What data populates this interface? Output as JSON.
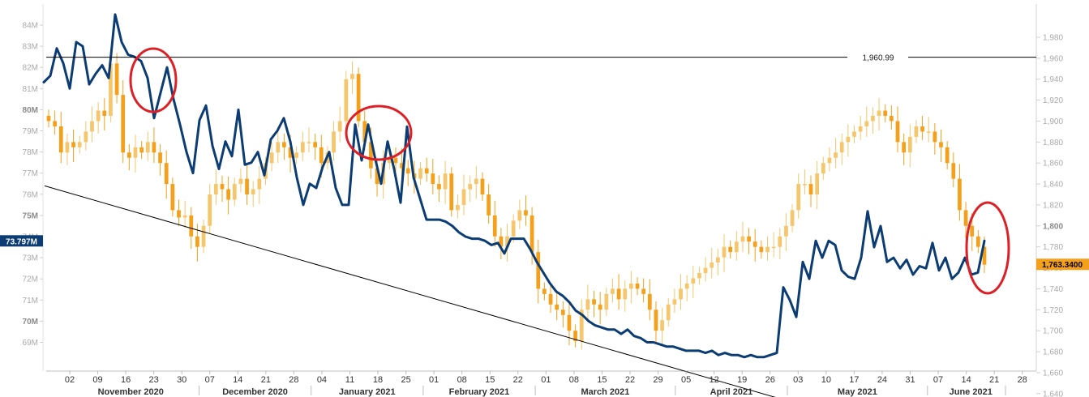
{
  "chart_data": {
    "type": "line",
    "left_axis": {
      "ticks": [
        "69M",
        "70M",
        "71M",
        "72M",
        "73M",
        "74M",
        "75M",
        "76M",
        "77M",
        "78M",
        "79M",
        "80M",
        "81M",
        "82M",
        "83M",
        "84M"
      ],
      "bold_ticks": [
        "70M",
        "75M",
        "80M"
      ],
      "range": [
        68.1,
        84.5
      ],
      "current_value_label": "73.797M",
      "current_value": 73.797
    },
    "right_axis": {
      "ticks": [
        "1,640",
        "1,660",
        "1,680",
        "1,700",
        "1,720",
        "1,740",
        "1,760",
        "1,780",
        "1,800",
        "1,820",
        "1,840",
        "1,860",
        "1,880",
        "1,900",
        "1,920",
        "1,940",
        "1,960",
        "1,980"
      ],
      "bold_ticks": [
        "1,800"
      ],
      "range": [
        1615,
        1995
      ],
      "current_value_label": "1,763.3400",
      "current_value": 1763.34
    },
    "x_ticks": [
      "02",
      "09",
      "16",
      "23",
      "30",
      "07",
      "14",
      "21",
      "28",
      "04",
      "11",
      "18",
      "25",
      "01",
      "08",
      "15",
      "22",
      "01",
      "08",
      "15",
      "22",
      "29",
      "05",
      "12",
      "19",
      "26",
      "03",
      "10",
      "17",
      "24",
      "31",
      "07",
      "14",
      "21",
      "28"
    ],
    "months": [
      "November 2020",
      "December 2020",
      "January 2021",
      "February 2021",
      "March 2021",
      "April 2021",
      "May 2021",
      "June 2021"
    ],
    "horizontal_line": {
      "value": 1960.99,
      "label": "1,960.99"
    },
    "series": [
      {
        "name": "",
        "axis": "left",
        "color": "#0b3c73",
        "values": [
          81.3,
          81.6,
          82.9,
          82.2,
          81.0,
          83.2,
          83.0,
          81.2,
          81.7,
          82.1,
          81.5,
          84.5,
          83.2,
          82.6,
          82.5,
          82.3,
          81.5,
          79.6,
          80.8,
          82.0,
          80.5,
          79.3,
          78.0,
          77.0,
          79.5,
          80.2,
          78.3,
          77.2,
          78.5,
          77.8,
          80.0,
          77.4,
          77.5,
          78.0,
          76.9,
          78.6,
          79.0,
          79.6,
          78.5,
          76.8,
          75.5,
          76.5,
          76.3,
          77.3,
          78.0,
          76.3,
          75.5,
          75.5,
          79.3,
          77.6,
          79.3,
          77.8,
          76.5,
          78.5,
          77.2,
          75.6,
          79.2,
          76.8,
          75.8,
          74.8,
          74.8,
          74.8,
          74.7,
          74.5,
          74.2,
          74.0,
          73.9,
          73.9,
          73.8,
          73.6,
          73.7,
          73.2,
          73.9,
          73.9,
          73.9,
          73.4,
          72.8,
          72.3,
          71.8,
          71.4,
          71.2,
          70.9,
          70.5,
          70.3,
          70.0,
          69.8,
          69.7,
          69.6,
          69.6,
          69.4,
          69.6,
          69.3,
          69.2,
          69.0,
          69.0,
          68.9,
          68.8,
          68.8,
          68.7,
          68.6,
          68.6,
          68.6,
          68.5,
          68.6,
          68.4,
          68.5,
          68.4,
          68.4,
          68.3,
          68.4,
          68.3,
          68.3,
          68.4,
          68.5,
          71.6,
          71.0,
          70.2,
          72.8,
          72.0,
          73.8,
          73.0,
          73.8,
          73.6,
          72.4,
          72.1,
          72.0,
          73.0,
          75.2,
          73.5,
          74.5,
          72.8,
          73.0,
          72.5,
          72.9,
          72.2,
          72.6,
          72.5,
          73.7,
          72.4,
          73.0,
          72.0,
          72.3,
          73.0,
          72.2,
          72.3,
          73.8
        ]
      },
      {
        "name": "",
        "axis": "right",
        "type": "candlestick",
        "up_color": "#f5c66b",
        "down_color": "#f5a01a",
        "closes": [
          1900,
          1895,
          1870,
          1880,
          1875,
          1880,
          1890,
          1900,
          1910,
          1905,
          1955,
          1925,
          1870,
          1865,
          1875,
          1870,
          1880,
          1870,
          1860,
          1840,
          1815,
          1808,
          1810,
          1790,
          1780,
          1800,
          1830,
          1840,
          1835,
          1825,
          1840,
          1845,
          1830,
          1835,
          1845,
          1860,
          1870,
          1880,
          1875,
          1865,
          1870,
          1880,
          1880,
          1875,
          1860,
          1870,
          1890,
          1900,
          1940,
          1945,
          1900,
          1880,
          1855,
          1840,
          1860,
          1865,
          1860,
          1855,
          1850,
          1845,
          1855,
          1850,
          1840,
          1835,
          1850,
          1815,
          1820,
          1835,
          1840,
          1845,
          1830,
          1810,
          1790,
          1780,
          1790,
          1805,
          1815,
          1810,
          1775,
          1740,
          1735,
          1725,
          1720,
          1715,
          1700,
          1690,
          1720,
          1730,
          1725,
          1720,
          1735,
          1740,
          1730,
          1740,
          1745,
          1740,
          1735,
          1720,
          1700,
          1710,
          1725,
          1730,
          1740,
          1745,
          1750,
          1755,
          1760,
          1765,
          1770,
          1780,
          1775,
          1785,
          1790,
          1785,
          1780,
          1775,
          1780,
          1780,
          1790,
          1800,
          1815,
          1840,
          1840,
          1830,
          1850,
          1860,
          1865,
          1870,
          1880,
          1885,
          1890,
          1895,
          1900,
          1905,
          1910,
          1905,
          1900,
          1880,
          1870,
          1885,
          1895,
          1890,
          1890,
          1880,
          1875,
          1860,
          1845,
          1815,
          1800,
          1790,
          1780,
          1763
        ]
      }
    ],
    "annotations": [
      {
        "type": "ellipse",
        "color": "#dd1f26",
        "note": ""
      },
      {
        "type": "ellipse",
        "color": "#dd1f26",
        "note": ""
      },
      {
        "type": "ellipse",
        "color": "#dd1f26",
        "note": ""
      },
      {
        "type": "trend_line",
        "color": "#000000",
        "from_value": 76.4,
        "to_value": 65.8
      }
    ],
    "colors": {
      "line": "#0b3c73",
      "candle_up": "#f5c66b",
      "candle_down": "#f5a01a",
      "left_tag": "#0b3c73",
      "right_tag": "#f5a01a",
      "circle": "#dd1f26"
    }
  }
}
